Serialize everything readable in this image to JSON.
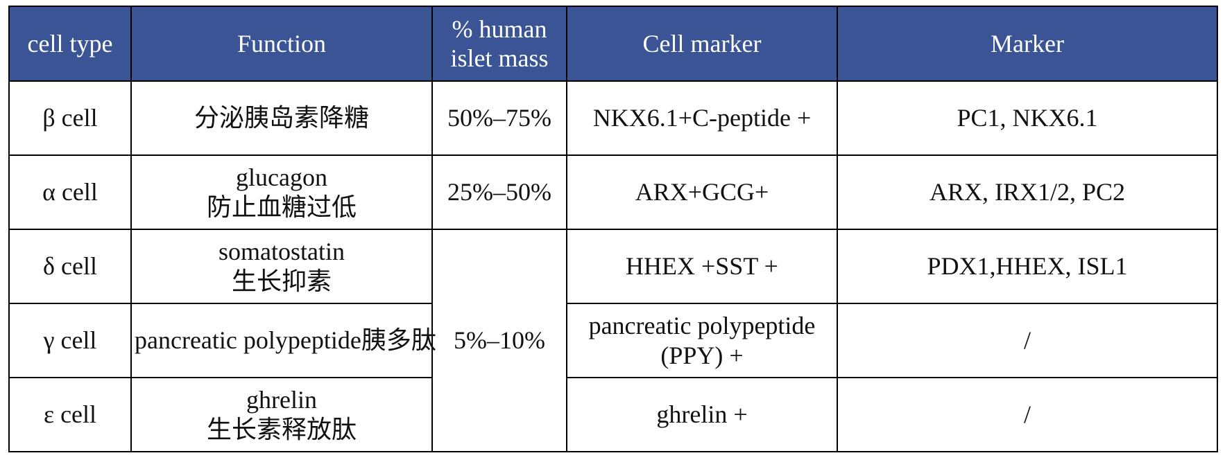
{
  "table": {
    "headers": {
      "cell_type": "cell type",
      "function": "Function",
      "mass_line1": "% human",
      "mass_line2": "islet mass",
      "cell_marker": "Cell marker",
      "marker": "Marker"
    },
    "rows": [
      {
        "cell_type": "β cell",
        "function_line1": "分泌胰岛素降糖",
        "function_line2": "",
        "mass": "50%–75%",
        "cell_marker_line1": "NKX6.1+C-peptide +",
        "cell_marker_line2": "",
        "marker": "PC1, NKX6.1"
      },
      {
        "cell_type": "α cell",
        "function_line1": "glucagon",
        "function_line2": "防止血糖过低",
        "mass": "25%–50%",
        "cell_marker_line1": "ARX+GCG+",
        "cell_marker_line2": "",
        "marker": "ARX, IRX1/2, PC2"
      },
      {
        "cell_type": "δ cell",
        "function_line1": "somatostatin",
        "function_line2": "生长抑素",
        "mass": "5%–10%",
        "cell_marker_line1": "HHEX +SST +",
        "cell_marker_line2": "",
        "marker": "PDX1,HHEX, ISL1"
      },
      {
        "cell_type": "γ cell",
        "function_line1": "pancreatic polypeptide胰多肽",
        "function_line2": "",
        "cell_marker_line1": "pancreatic polypeptide",
        "cell_marker_line2": "(PPY) +",
        "marker": "/"
      },
      {
        "cell_type": "ε cell",
        "function_line1": "ghrelin",
        "function_line2": "生长素释放肽",
        "cell_marker_line1": "ghrelin +",
        "cell_marker_line2": "",
        "marker": "/"
      }
    ]
  },
  "colors": {
    "header_background": "#3a5496",
    "header_text": "#ffffff",
    "border": "#000000"
  }
}
